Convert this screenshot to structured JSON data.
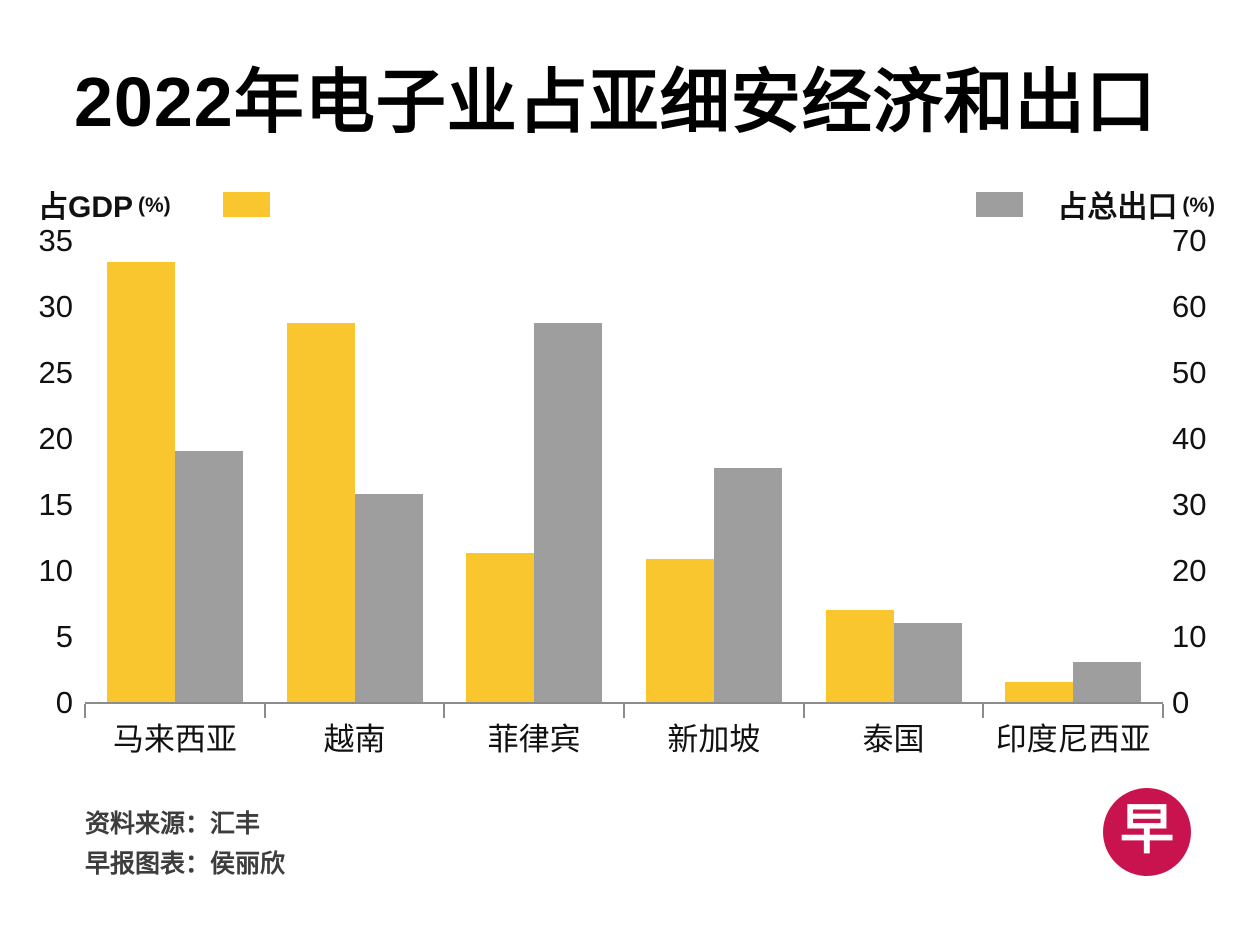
{
  "title": "2022年电子业占亚细安经济和出口",
  "legend": {
    "left_label": "占GDP",
    "left_unit": "(%)",
    "right_label": "占总出口",
    "right_unit": "(%)"
  },
  "colors": {
    "gdp": "#FAC62F",
    "export": "#9E9E9E",
    "axis_line": "#8c8c8c",
    "logo": "#C9134E"
  },
  "chart_data": {
    "type": "bar",
    "title": "2022年电子业占亚细安经济和出口",
    "categories": [
      "马来西亚",
      "越南",
      "菲律宾",
      "新加坡",
      "泰国",
      "印度尼西亚"
    ],
    "series": [
      {
        "name": "占GDP (%)",
        "axis": "left",
        "color": "#FAC62F",
        "values": [
          33.3,
          28.7,
          11.3,
          10.8,
          7.0,
          1.5
        ]
      },
      {
        "name": "占总出口 (%)",
        "axis": "right",
        "color": "#9E9E9E",
        "values": [
          38.0,
          31.5,
          57.5,
          35.5,
          12.0,
          6.0
        ]
      }
    ],
    "left_axis": {
      "label": "占GDP (%)",
      "ticks": [
        35,
        30,
        25,
        20,
        15,
        10,
        5,
        0
      ],
      "min": 0,
      "max": 35
    },
    "right_axis": {
      "label": "占总出口 (%)",
      "ticks": [
        70,
        60,
        50,
        40,
        30,
        20,
        10,
        0
      ],
      "min": 0,
      "max": 70
    },
    "grid": false,
    "legend_position": "top"
  },
  "footer": {
    "source": "资料来源：汇丰",
    "credit": "早报图表：侯丽欣",
    "logo_char": "早"
  }
}
